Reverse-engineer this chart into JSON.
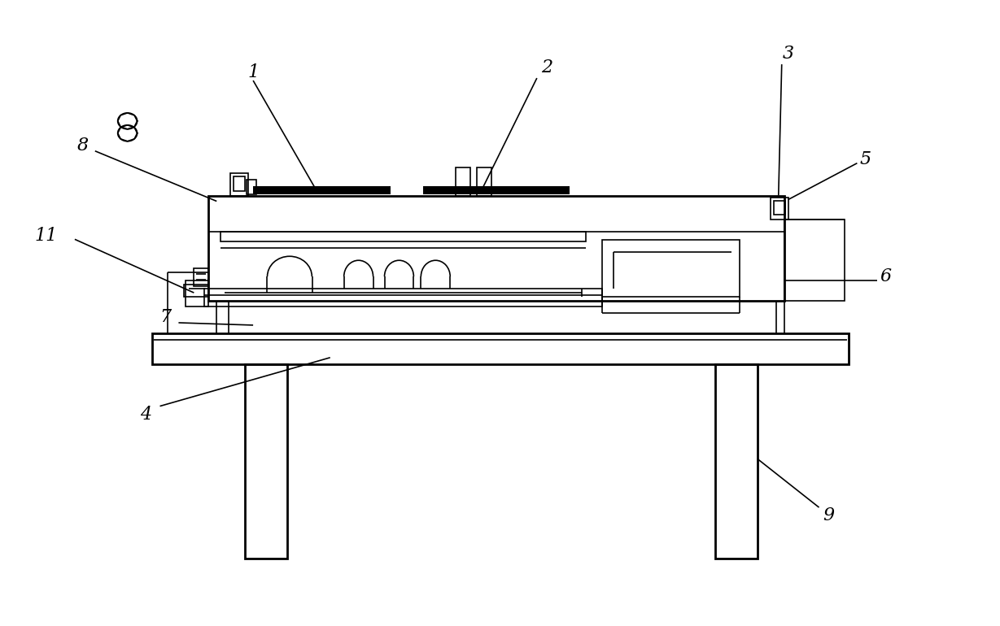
{
  "bg_color": "#ffffff",
  "line_color": "#000000",
  "lw": 1.2,
  "lw_thick": 2.0,
  "label_fontsize": 16,
  "fig_w": 12.29,
  "fig_h": 7.7,
  "dpi": 100
}
